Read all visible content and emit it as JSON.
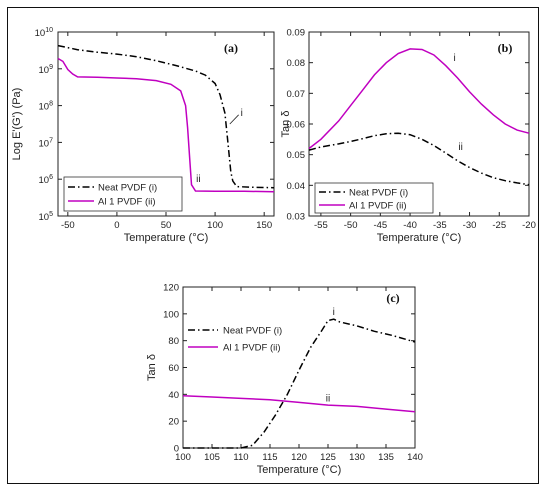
{
  "chart_data": [
    {
      "type": "line",
      "panel": "(a)",
      "xlabel": "Temperature (°C)",
      "ylabel": "Log E'(G') (Pa)",
      "xlim": [
        -60,
        160
      ],
      "ylim_log10": [
        5,
        10
      ],
      "x_ticks": [
        "-50",
        "0",
        "50",
        "100",
        "150"
      ],
      "y_ticks": [
        "10^10",
        "10^9",
        "10^8",
        "10^7",
        "10^6",
        "10^5"
      ],
      "legend": "bottom-left",
      "series": [
        {
          "name": "Neat PVDF (i)",
          "style": "dash-dot",
          "color": "#000000",
          "annotation": "i",
          "log10_values": [
            [
              -60,
              9.63
            ],
            [
              -40,
              9.52
            ],
            [
              -20,
              9.45
            ],
            [
              0,
              9.4
            ],
            [
              20,
              9.33
            ],
            [
              40,
              9.22
            ],
            [
              60,
              9.09
            ],
            [
              80,
              8.94
            ],
            [
              90,
              8.83
            ],
            [
              100,
              8.6
            ],
            [
              105,
              8.3
            ],
            [
              110,
              7.8
            ],
            [
              113,
              7.0
            ],
            [
              116,
              6.2
            ],
            [
              118,
              5.95
            ],
            [
              122,
              5.8
            ],
            [
              140,
              5.78
            ],
            [
              160,
              5.77
            ]
          ]
        },
        {
          "name": "Al 1 PVDF (ii)",
          "style": "solid",
          "color": "#c000c0",
          "annotation": "ii",
          "log10_values": [
            [
              -60,
              9.28
            ],
            [
              -55,
              9.2
            ],
            [
              -50,
              8.98
            ],
            [
              -45,
              8.86
            ],
            [
              -40,
              8.78
            ],
            [
              -20,
              8.77
            ],
            [
              0,
              8.75
            ],
            [
              20,
              8.73
            ],
            [
              40,
              8.68
            ],
            [
              55,
              8.58
            ],
            [
              65,
              8.4
            ],
            [
              70,
              8.0
            ],
            [
              72,
              7.4
            ],
            [
              74,
              6.6
            ],
            [
              76,
              5.85
            ],
            [
              80,
              5.68
            ],
            [
              100,
              5.67
            ],
            [
              130,
              5.67
            ],
            [
              160,
              5.66
            ]
          ]
        }
      ]
    },
    {
      "type": "line",
      "panel": "(b)",
      "xlabel": "Temperature (°C)",
      "ylabel": "Tan δ",
      "xlim": [
        -57,
        -20
      ],
      "ylim": [
        0.03,
        0.09
      ],
      "x_ticks": [
        "-55",
        "-50",
        "-45",
        "-40",
        "-35",
        "-30",
        "-25",
        "-20"
      ],
      "y_ticks": [
        "0.03",
        "0.04",
        "0.05",
        "0.06",
        "0.07",
        "0.08",
        "0.09"
      ],
      "legend": "bottom-left",
      "series": [
        {
          "name": "Neat PVDF (i)",
          "style": "dash-dot",
          "color": "#000000",
          "annotation": "ii",
          "x": [
            -57,
            -55,
            -52,
            -50,
            -48,
            -46,
            -44,
            -42,
            -40,
            -38,
            -36,
            -34,
            -32,
            -30,
            -28,
            -26,
            -24,
            -22,
            -20
          ],
          "values": [
            0.0515,
            0.0525,
            0.0535,
            0.0543,
            0.0552,
            0.0562,
            0.0568,
            0.057,
            0.0565,
            0.055,
            0.053,
            0.0505,
            0.048,
            0.0458,
            0.044,
            0.0425,
            0.0415,
            0.0408,
            0.0402
          ]
        },
        {
          "name": "Al 1 PVDF (ii)",
          "style": "solid",
          "color": "#c000c0",
          "annotation": "i",
          "x": [
            -57,
            -55,
            -52,
            -50,
            -48,
            -46,
            -44,
            -42,
            -40,
            -38,
            -36,
            -34,
            -32,
            -30,
            -28,
            -26,
            -24,
            -22,
            -20
          ],
          "values": [
            0.052,
            0.055,
            0.061,
            0.066,
            0.071,
            0.076,
            0.08,
            0.083,
            0.0845,
            0.0843,
            0.0825,
            0.079,
            0.075,
            0.0705,
            0.0665,
            0.063,
            0.06,
            0.058,
            0.057
          ]
        }
      ]
    },
    {
      "type": "line",
      "panel": "(c)",
      "xlabel": "Temperature (°C)",
      "ylabel": "Tan δ",
      "xlim": [
        100,
        140
      ],
      "ylim": [
        0,
        120
      ],
      "x_ticks": [
        "100",
        "105",
        "110",
        "115",
        "120",
        "125",
        "130",
        "135",
        "140"
      ],
      "y_ticks": [
        "0",
        "20",
        "40",
        "60",
        "80",
        "100",
        "120"
      ],
      "legend": "upper-left",
      "series": [
        {
          "name": "Neat PVDF (i)",
          "style": "dash-dot",
          "color": "#000000",
          "annotation": "i",
          "x": [
            100,
            105,
            110,
            112,
            114,
            116,
            118,
            120,
            122,
            124,
            125,
            126,
            127,
            130,
            133,
            136,
            140
          ],
          "values": [
            0,
            0,
            0,
            2,
            12,
            25,
            40,
            58,
            75,
            88,
            95,
            96,
            94,
            91,
            87,
            84,
            79
          ]
        },
        {
          "name": "Al 1 PVDF (ii)",
          "style": "solid",
          "color": "#c000c0",
          "annotation": "ii",
          "x": [
            100,
            105,
            110,
            115,
            120,
            125,
            130,
            135,
            140
          ],
          "values": [
            39,
            38,
            37,
            36,
            34,
            32,
            31,
            29,
            27
          ]
        }
      ]
    }
  ]
}
